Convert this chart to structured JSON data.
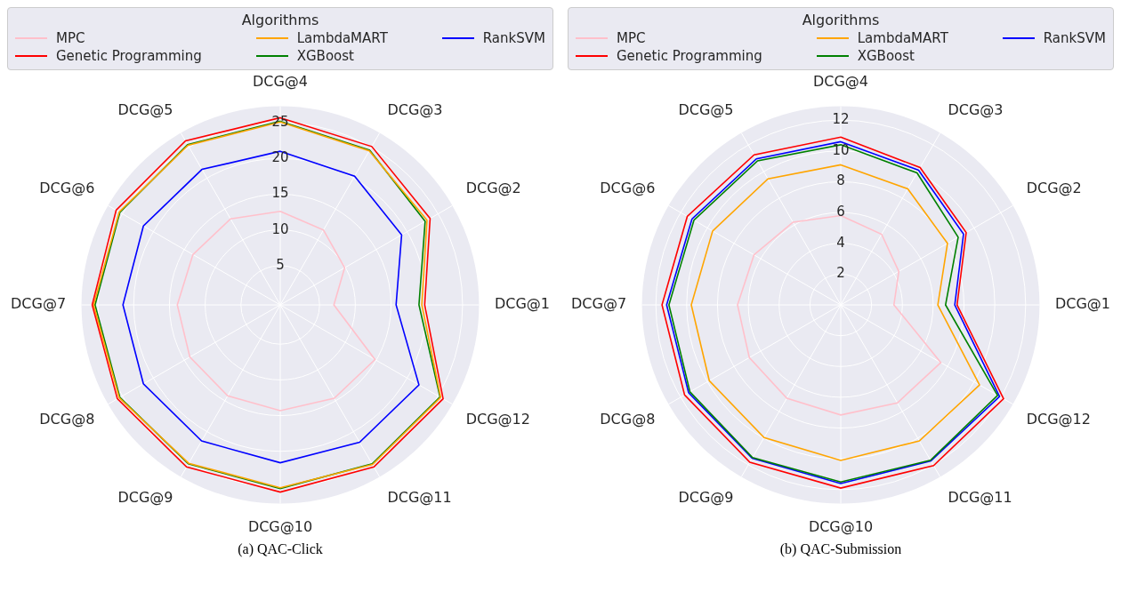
{
  "chart_data": [
    {
      "type": "radar",
      "legend_title": "Algorithms",
      "legend": "top",
      "grid": true,
      "annotations": [
        "(a) QAC-Click"
      ],
      "categories": [
        "DCG@4",
        "DCG@3",
        "DCG@2",
        "DCG@1",
        "DCG@12",
        "DCG@11",
        "DCG@10",
        "DCG@9",
        "DCG@8",
        "DCG@7",
        "DCG@6",
        "DCG@5"
      ],
      "ylim": [
        -0.5,
        27.3
      ],
      "yticks": [
        5,
        10,
        15,
        20,
        25
      ],
      "series": [
        {
          "name": "MPC",
          "color": "#ffc0cb",
          "values": [
            12.6,
            11.6,
            9.9,
            7.0,
            14.8,
            14.6,
            14.3,
            14.2,
            14.1,
            13.9,
            13.6,
            13.4
          ]
        },
        {
          "name": "Genetic Programming",
          "color": "#ff0000",
          "values": [
            25.7,
            25.1,
            23.7,
            19.7,
            25.8,
            25.7,
            25.7,
            25.7,
            25.8,
            25.8,
            26.0,
            26.0
          ]
        },
        {
          "name": "LambdaMART",
          "color": "#ffa500",
          "values": [
            25.1,
            24.4,
            23.2,
            19.3,
            25.4,
            25.3,
            25.1,
            25.1,
            25.5,
            25.6,
            25.5,
            25.3
          ]
        },
        {
          "name": "XGBoost",
          "color": "#008000",
          "values": [
            25.2,
            24.5,
            22.9,
            18.9,
            25.3,
            25.2,
            25.2,
            25.2,
            25.4,
            25.4,
            25.4,
            25.4
          ]
        },
        {
          "name": "RankSVM",
          "color": "#0000ff",
          "values": [
            21.0,
            20.3,
            19.1,
            15.7,
            21.9,
            21.7,
            21.6,
            21.5,
            21.6,
            21.5,
            21.6,
            21.4
          ]
        }
      ]
    },
    {
      "type": "radar",
      "legend_title": "Algorithms",
      "legend": "top",
      "grid": true,
      "annotations": [
        "(b) QAC-Submission"
      ],
      "categories": [
        "DCG@4",
        "DCG@3",
        "DCG@2",
        "DCG@1",
        "DCG@12",
        "DCG@11",
        "DCG@10",
        "DCG@9",
        "DCG@8",
        "DCG@7",
        "DCG@6",
        "DCG@5"
      ],
      "ylim": [
        0,
        12.9
      ],
      "yticks": [
        2,
        4,
        6,
        8,
        10,
        12
      ],
      "series": [
        {
          "name": "MPC",
          "color": "#ffc0cb",
          "values": [
            5.8,
            5.3,
            4.35,
            3.45,
            7.5,
            7.35,
            7.15,
            7.0,
            6.85,
            6.7,
            6.5,
            6.2
          ]
        },
        {
          "name": "Genetic Programming",
          "color": "#ff0000",
          "values": [
            10.9,
            10.3,
            9.4,
            7.55,
            12.2,
            12.05,
            11.9,
            11.8,
            11.7,
            11.6,
            11.5,
            11.25
          ]
        },
        {
          "name": "LambdaMART",
          "color": "#ffa500",
          "values": [
            9.1,
            8.7,
            8.0,
            6.3,
            10.4,
            10.2,
            10.1,
            9.95,
            9.85,
            9.7,
            9.6,
            9.45
          ]
        },
        {
          "name": "XGBoost",
          "color": "#008000",
          "values": [
            10.4,
            9.9,
            8.8,
            6.8,
            11.75,
            11.65,
            11.5,
            11.45,
            11.3,
            11.15,
            11.0,
            10.8
          ]
        },
        {
          "name": "RankSVM",
          "color": "#0000ff",
          "values": [
            10.6,
            10.1,
            9.2,
            7.4,
            11.9,
            11.7,
            11.6,
            11.5,
            11.4,
            11.3,
            11.15,
            10.95
          ]
        }
      ]
    }
  ]
}
